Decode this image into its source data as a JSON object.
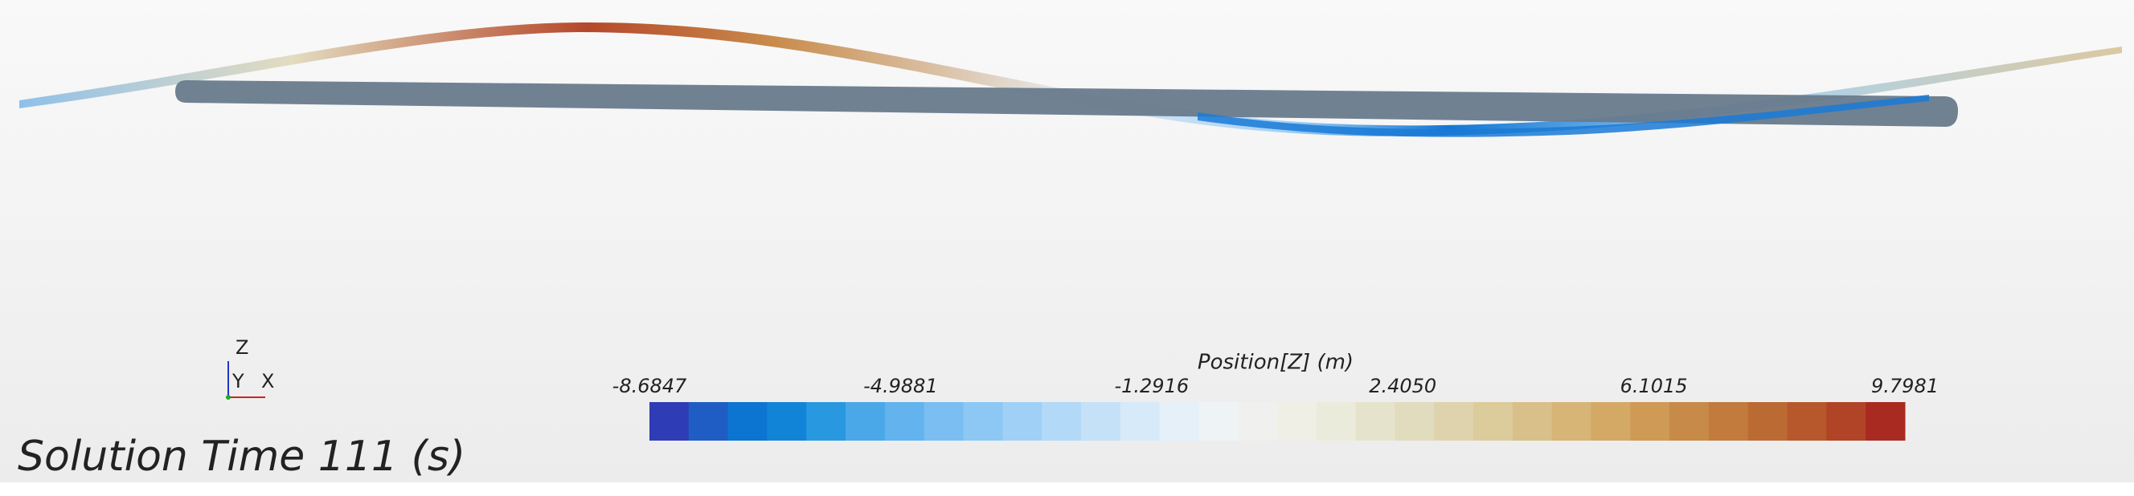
{
  "scene": {
    "solution_time_label": "Solution Time 111 (s)",
    "axes_triad": [
      "Z",
      "Y",
      "X"
    ]
  },
  "colorbar": {
    "title": "Position[Z] (m)",
    "range": [
      -8.6847,
      9.7981
    ],
    "ticks": [
      -8.6847,
      -4.9881,
      -1.2916,
      {
        "value": 2.405,
        "label": "2.4050"
      },
      6.1015,
      9.7981
    ],
    "colors": [
      "#2e3db5",
      "#1f5dc4",
      "#0b75d1",
      "#1284d8",
      "#2898e0",
      "#4aa8e8",
      "#62b3ee",
      "#7abef2",
      "#8dc7f4",
      "#a0d0f6",
      "#b3d9f8",
      "#c4e1f8",
      "#d6eaf9",
      "#e5f0f9",
      "#eef3f6",
      "#f0f1ef",
      "#efefe6",
      "#ebebdc",
      "#e6e3cd",
      "#e2dcbe",
      "#dfd3ad",
      "#dccb9b",
      "#d9c08a",
      "#d6b577",
      "#d4a865",
      "#cf9a55",
      "#c88a48",
      "#c27a3d",
      "#bc6a33",
      "#b6582b",
      "#b14426",
      "#a92a20"
    ]
  }
}
